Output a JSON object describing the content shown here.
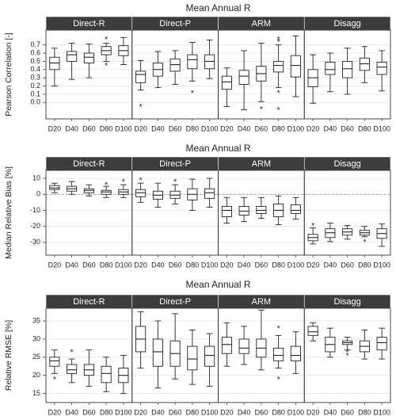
{
  "colors": {
    "strip": "#3c3c3c",
    "strip_text": "#ffffff",
    "box": "#222222",
    "grid": "#e4e4e4",
    "zero_line": "#888888"
  },
  "panel_labels": [
    "Direct-R",
    "Direct-P",
    "ARM",
    "Disagg"
  ],
  "chart_data": [
    {
      "type": "boxplot",
      "title": "Mean Annual R",
      "ylabel": "Pearson Correlation [-]",
      "ylim": [
        -0.2,
        0.88
      ],
      "yticks": [
        0.0,
        0.1,
        0.2,
        0.3,
        0.4,
        0.5,
        0.6,
        0.7
      ],
      "ytick_labels": [
        "0.0",
        "0.1",
        "0.2",
        "0.3",
        "0.4",
        "0.5",
        "0.6",
        "0.7"
      ],
      "zero_line": false,
      "categories": [
        "D20",
        "D40",
        "D60",
        "D80",
        "D100"
      ],
      "panels": [
        {
          "name": "Direct-R",
          "boxes": [
            {
              "lw": 0.2,
              "q1": 0.4,
              "med": 0.48,
              "q3": 0.55,
              "uw": 0.66,
              "out": []
            },
            {
              "lw": 0.28,
              "q1": 0.5,
              "med": 0.58,
              "q3": 0.62,
              "uw": 0.72,
              "out": []
            },
            {
              "lw": 0.3,
              "q1": 0.48,
              "med": 0.55,
              "q3": 0.6,
              "uw": 0.71,
              "out": []
            },
            {
              "lw": 0.5,
              "q1": 0.58,
              "med": 0.63,
              "q3": 0.68,
              "uw": 0.72,
              "out": [
                0.77,
                0.45
              ]
            },
            {
              "lw": 0.46,
              "q1": 0.57,
              "med": 0.63,
              "q3": 0.69,
              "uw": 0.79,
              "out": []
            }
          ]
        },
        {
          "name": "Direct-P",
          "boxes": [
            {
              "lw": 0.15,
              "q1": 0.24,
              "med": 0.34,
              "q3": 0.38,
              "uw": 0.51,
              "out": [
                -0.05
              ]
            },
            {
              "lw": 0.18,
              "q1": 0.32,
              "med": 0.4,
              "q3": 0.48,
              "uw": 0.62,
              "out": []
            },
            {
              "lw": 0.22,
              "q1": 0.38,
              "med": 0.46,
              "q3": 0.53,
              "uw": 0.63,
              "out": []
            },
            {
              "lw": 0.26,
              "q1": 0.41,
              "med": 0.52,
              "q3": 0.58,
              "uw": 0.73,
              "out": [
                0.12
              ]
            },
            {
              "lw": 0.29,
              "q1": 0.41,
              "med": 0.5,
              "q3": 0.58,
              "uw": 0.76,
              "out": []
            }
          ]
        },
        {
          "name": "ARM",
          "boxes": [
            {
              "lw": -0.05,
              "q1": 0.16,
              "med": 0.25,
              "q3": 0.32,
              "uw": 0.42,
              "out": []
            },
            {
              "lw": -0.09,
              "q1": 0.22,
              "med": 0.32,
              "q3": 0.39,
              "uw": 0.63,
              "out": []
            },
            {
              "lw": 0.01,
              "q1": 0.26,
              "med": 0.35,
              "q3": 0.44,
              "uw": 0.72,
              "out": [
                -0.08
              ]
            },
            {
              "lw": 0.18,
              "q1": 0.37,
              "med": 0.45,
              "q3": 0.5,
              "uw": 0.7,
              "out": [
                0.77,
                0.74,
                0.12,
                -0.09
              ]
            },
            {
              "lw": 0.07,
              "q1": 0.31,
              "med": 0.45,
              "q3": 0.57,
              "uw": 0.81,
              "out": []
            }
          ]
        },
        {
          "name": "Disagg",
          "boxes": [
            {
              "lw": -0.01,
              "q1": 0.19,
              "med": 0.3,
              "q3": 0.4,
              "uw": 0.58,
              "out": []
            },
            {
              "lw": 0.13,
              "q1": 0.34,
              "med": 0.4,
              "q3": 0.49,
              "uw": 0.6,
              "out": []
            },
            {
              "lw": 0.1,
              "q1": 0.3,
              "med": 0.41,
              "q3": 0.5,
              "uw": 0.66,
              "out": []
            },
            {
              "lw": 0.24,
              "q1": 0.39,
              "med": 0.47,
              "q3": 0.54,
              "uw": 0.68,
              "out": []
            },
            {
              "lw": 0.14,
              "q1": 0.34,
              "med": 0.43,
              "q3": 0.49,
              "uw": 0.63,
              "out": []
            }
          ]
        }
      ]
    },
    {
      "type": "boxplot",
      "title": "Mean Annual R",
      "ylabel": "Median Relative Bias [%]",
      "ylim": [
        -38,
        15
      ],
      "yticks": [
        -30,
        -20,
        -10,
        0,
        10
      ],
      "ytick_labels": [
        "-30",
        "-20",
        "-10",
        "0",
        "10"
      ],
      "zero_line": true,
      "categories": [
        "D20",
        "D40",
        "D60",
        "D80",
        "D100"
      ],
      "panels": [
        {
          "name": "Direct-R",
          "boxes": [
            {
              "lw": 1.0,
              "q1": 3.0,
              "med": 4.0,
              "q3": 5.5,
              "uw": 7.0,
              "out": []
            },
            {
              "lw": 0.0,
              "q1": 2.0,
              "med": 3.5,
              "q3": 5.0,
              "uw": 8.0,
              "out": []
            },
            {
              "lw": -1.0,
              "q1": 1.0,
              "med": 2.5,
              "q3": 3.5,
              "uw": 6.0,
              "out": []
            },
            {
              "lw": -2.0,
              "q1": 0.0,
              "med": 1.5,
              "q3": 2.5,
              "uw": 5.0,
              "out": [
                6.0
              ]
            },
            {
              "lw": -2.0,
              "q1": 0.0,
              "med": 1.5,
              "q3": 3.0,
              "uw": 6.0,
              "out": [
                8.0
              ]
            }
          ]
        },
        {
          "name": "Direct-P",
          "boxes": [
            {
              "lw": -5.0,
              "q1": -1.5,
              "med": 1.0,
              "q3": 3.0,
              "uw": 7.0,
              "out": [
                9.0
              ]
            },
            {
              "lw": -8.0,
              "q1": -3.0,
              "med": -0.5,
              "q3": 2.0,
              "uw": 7.0,
              "out": []
            },
            {
              "lw": -6.0,
              "q1": -2.5,
              "med": -0.5,
              "q3": 2.0,
              "uw": 6.0,
              "out": [
                8.0
              ]
            },
            {
              "lw": -10.0,
              "q1": -3.5,
              "med": 0.0,
              "q3": 3.5,
              "uw": 9.5,
              "out": []
            },
            {
              "lw": -8.0,
              "q1": -2.5,
              "med": 1.0,
              "q3": 3.5,
              "uw": 10.0,
              "out": []
            }
          ]
        },
        {
          "name": "ARM",
          "boxes": [
            {
              "lw": -18.0,
              "q1": -14.0,
              "med": -10.0,
              "q3": -7.5,
              "uw": -2.0,
              "out": []
            },
            {
              "lw": -17.0,
              "q1": -13.0,
              "med": -10.5,
              "q3": -7.5,
              "uw": -2.0,
              "out": []
            },
            {
              "lw": -15.0,
              "q1": -12.0,
              "med": -10.0,
              "q3": -7.5,
              "uw": -2.0,
              "out": []
            },
            {
              "lw": -19.0,
              "q1": -14.0,
              "med": -10.0,
              "q3": -6.0,
              "uw": -1.0,
              "out": []
            },
            {
              "lw": -15.5,
              "q1": -12.0,
              "med": -10.0,
              "q3": -6.5,
              "uw": -2.0,
              "out": []
            }
          ]
        },
        {
          "name": "Disagg",
          "boxes": [
            {
              "lw": -31.0,
              "q1": -29.0,
              "med": -27.0,
              "q3": -25.0,
              "uw": -21.0,
              "out": [
                -19.5
              ]
            },
            {
              "lw": -29.5,
              "q1": -27.0,
              "med": -24.0,
              "q3": -21.5,
              "uw": -18.0,
              "out": []
            },
            {
              "lw": -28.0,
              "q1": -25.5,
              "med": -23.5,
              "q3": -21.5,
              "uw": -19.5,
              "out": []
            },
            {
              "lw": -26.5,
              "q1": -25.5,
              "med": -24.0,
              "q3": -22.5,
              "uw": -20.0,
              "out": [
                -29.5
              ]
            },
            {
              "lw": -32.5,
              "q1": -27.5,
              "med": -24.5,
              "q3": -21.5,
              "uw": -18.5,
              "out": []
            }
          ]
        }
      ]
    },
    {
      "type": "boxplot",
      "title": "Mean Annual R",
      "ylabel": "Relative RMSE [%]",
      "ylim": [
        12.5,
        38.5
      ],
      "yticks": [
        15,
        20,
        25,
        30,
        35
      ],
      "ytick_labels": [
        "15",
        "20",
        "25",
        "30",
        "35"
      ],
      "zero_line": false,
      "categories": [
        "D20",
        "D40",
        "D60",
        "D80",
        "D100"
      ],
      "panels": [
        {
          "name": "Direct-R",
          "boxes": [
            {
              "lw": 20.5,
              "q1": 22.5,
              "med": 24.0,
              "q3": 25.0,
              "uw": 27.0,
              "out": [
                19.0
              ]
            },
            {
              "lw": 18.0,
              "q1": 20.5,
              "med": 21.5,
              "q3": 23.0,
              "uw": 24.5,
              "out": [
                26.5
              ]
            },
            {
              "lw": 17.0,
              "q1": 20.0,
              "med": 21.5,
              "q3": 23.0,
              "uw": 27.0,
              "out": []
            },
            {
              "lw": 15.5,
              "q1": 18.0,
              "med": 20.5,
              "q3": 22.5,
              "uw": 25.0,
              "out": []
            },
            {
              "lw": 15.0,
              "q1": 18.0,
              "med": 20.0,
              "q3": 22.0,
              "uw": 25.5,
              "out": []
            }
          ]
        },
        {
          "name": "Direct-P",
          "boxes": [
            {
              "lw": 22.0,
              "q1": 26.5,
              "med": 30.0,
              "q3": 33.5,
              "uw": 37.5,
              "out": []
            },
            {
              "lw": 16.5,
              "q1": 22.5,
              "med": 26.5,
              "q3": 30.0,
              "uw": 35.0,
              "out": []
            },
            {
              "lw": 19.0,
              "q1": 22.5,
              "med": 26.0,
              "q3": 29.5,
              "uw": 37.0,
              "out": []
            },
            {
              "lw": 17.5,
              "q1": 21.5,
              "med": 24.5,
              "q3": 28.0,
              "uw": 32.5,
              "out": []
            },
            {
              "lw": 17.0,
              "q1": 22.5,
              "med": 25.5,
              "q3": 28.0,
              "uw": 31.5,
              "out": []
            }
          ]
        },
        {
          "name": "ARM",
          "boxes": [
            {
              "lw": 22.5,
              "q1": 26.0,
              "med": 28.5,
              "q3": 30.5,
              "uw": 34.5,
              "out": []
            },
            {
              "lw": 23.0,
              "q1": 26.0,
              "med": 27.5,
              "q3": 30.0,
              "uw": 33.5,
              "out": []
            },
            {
              "lw": 21.5,
              "q1": 25.0,
              "med": 27.5,
              "q3": 30.0,
              "uw": 38.0,
              "out": []
            },
            {
              "lw": 22.0,
              "q1": 24.0,
              "med": 25.5,
              "q3": 27.5,
              "uw": 31.0,
              "out": [
                33.0,
                19.0
              ]
            },
            {
              "lw": 20.5,
              "q1": 24.0,
              "med": 25.5,
              "q3": 28.0,
              "uw": 32.0,
              "out": []
            }
          ]
        },
        {
          "name": "Disagg",
          "boxes": [
            {
              "lw": 29.5,
              "q1": 31.0,
              "med": 32.0,
              "q3": 33.5,
              "uw": 34.5,
              "out": []
            },
            {
              "lw": 25.0,
              "q1": 26.5,
              "med": 28.5,
              "q3": 30.5,
              "uw": 33.0,
              "out": []
            },
            {
              "lw": 27.0,
              "q1": 28.5,
              "med": 29.0,
              "q3": 29.5,
              "uw": 30.5,
              "out": [
                26.5,
                25.5
              ]
            },
            {
              "lw": 24.5,
              "q1": 26.5,
              "med": 28.0,
              "q3": 29.5,
              "uw": 32.5,
              "out": []
            },
            {
              "lw": 24.5,
              "q1": 27.0,
              "med": 29.0,
              "q3": 30.5,
              "uw": 33.0,
              "out": []
            }
          ]
        }
      ]
    }
  ]
}
